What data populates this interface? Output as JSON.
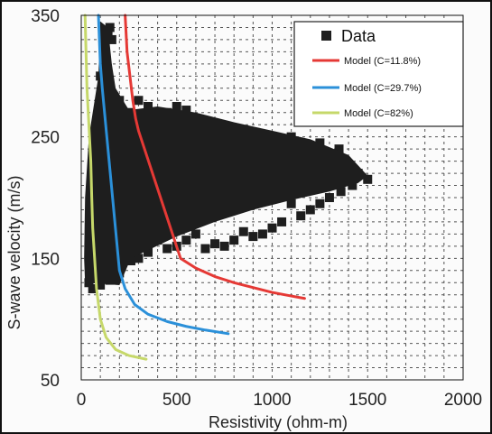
{
  "chart_data": {
    "type": "scatter",
    "title": "",
    "xlabel": "Resistivity (ohm-m)",
    "ylabel": "S-wave velocity (m/s)",
    "xlim": [
      0,
      2000
    ],
    "ylim": [
      50,
      350
    ],
    "xticks": [
      "0",
      "500",
      "1000",
      "1500",
      "2000"
    ],
    "yticks": [
      "50",
      "150",
      "250",
      "350"
    ],
    "grid": true,
    "legend_position": "top-right",
    "colors": {
      "data": "#1e1e1e",
      "model_c11": "#e53935",
      "model_c29": "#2b90d9",
      "model_c82": "#c6d86a"
    },
    "data_series": {
      "name": "Data",
      "marker": "square",
      "points": [
        [
          40,
          130
        ],
        [
          60,
          125
        ],
        [
          80,
          135
        ],
        [
          100,
          128
        ],
        [
          120,
          140
        ],
        [
          150,
          132
        ],
        [
          200,
          138
        ],
        [
          240,
          150
        ],
        [
          180,
          160
        ],
        [
          220,
          170
        ],
        [
          260,
          180
        ],
        [
          300,
          175
        ],
        [
          350,
          190
        ],
        [
          400,
          200
        ],
        [
          450,
          210
        ],
        [
          500,
          205
        ],
        [
          550,
          215
        ],
        [
          600,
          220
        ],
        [
          650,
          225
        ],
        [
          700,
          230
        ],
        [
          750,
          222
        ],
        [
          800,
          235
        ],
        [
          850,
          228
        ],
        [
          900,
          240
        ],
        [
          950,
          232
        ],
        [
          1000,
          245
        ],
        [
          1050,
          236
        ],
        [
          1100,
          250
        ],
        [
          1150,
          238
        ],
        [
          1200,
          230
        ],
        [
          1250,
          245
        ],
        [
          1300,
          228
        ],
        [
          1350,
          240
        ],
        [
          1400,
          226
        ],
        [
          1450,
          220
        ],
        [
          1500,
          215
        ],
        [
          1420,
          210
        ],
        [
          1360,
          205
        ],
        [
          1300,
          200
        ],
        [
          1250,
          195
        ],
        [
          1200,
          190
        ],
        [
          1150,
          185
        ],
        [
          1100,
          195
        ],
        [
          1050,
          180
        ],
        [
          1000,
          175
        ],
        [
          950,
          170
        ],
        [
          900,
          168
        ],
        [
          850,
          172
        ],
        [
          800,
          165
        ],
        [
          750,
          160
        ],
        [
          700,
          162
        ],
        [
          650,
          158
        ],
        [
          600,
          170
        ],
        [
          550,
          165
        ],
        [
          500,
          160
        ],
        [
          450,
          158
        ],
        [
          400,
          165
        ],
        [
          350,
          155
        ],
        [
          300,
          150
        ],
        [
          260,
          148
        ],
        [
          400,
          265
        ],
        [
          450,
          270
        ],
        [
          500,
          275
        ],
        [
          550,
          272
        ],
        [
          600,
          262
        ],
        [
          650,
          258
        ],
        [
          700,
          255
        ],
        [
          750,
          258
        ],
        [
          800,
          245
        ],
        [
          850,
          250
        ],
        [
          100,
          300
        ],
        [
          120,
          320
        ],
        [
          140,
          336
        ],
        [
          150,
          340
        ],
        [
          160,
          330
        ],
        [
          130,
          310
        ],
        [
          110,
          290
        ],
        [
          90,
          270
        ],
        [
          180,
          260
        ],
        [
          200,
          280
        ],
        [
          300,
          280
        ],
        [
          350,
          275
        ],
        [
          250,
          270
        ],
        [
          80,
          200
        ],
        [
          70,
          180
        ],
        [
          60,
          160
        ],
        [
          50,
          145
        ],
        [
          90,
          190
        ],
        [
          110,
          210
        ],
        [
          130,
          230
        ]
      ]
    },
    "series": [
      {
        "name": "Model (C=11.8%)",
        "color": "#e53935",
        "points": [
          [
            230,
            350
          ],
          [
            240,
            320
          ],
          [
            255,
            300
          ],
          [
            270,
            280
          ],
          [
            285,
            265
          ],
          [
            300,
            255
          ],
          [
            520,
            150
          ],
          [
            600,
            142
          ],
          [
            700,
            135
          ],
          [
            800,
            130
          ],
          [
            900,
            126
          ],
          [
            1000,
            122
          ],
          [
            1100,
            119
          ],
          [
            1170,
            117
          ]
        ]
      },
      {
        "name": "Model (C=29.7%)",
        "color": "#2b90d9",
        "points": [
          [
            90,
            350
          ],
          [
            95,
            330
          ],
          [
            100,
            310
          ],
          [
            110,
            290
          ],
          [
            200,
            140
          ],
          [
            230,
            125
          ],
          [
            280,
            112
          ],
          [
            350,
            104
          ],
          [
            450,
            98
          ],
          [
            550,
            94
          ],
          [
            650,
            91
          ],
          [
            770,
            88
          ]
        ]
      },
      {
        "name": "Model (C=82%)",
        "color": "#c6d86a",
        "points": [
          [
            20,
            350
          ],
          [
            25,
            320
          ],
          [
            30,
            290
          ],
          [
            40,
            260
          ],
          [
            50,
            230
          ],
          [
            55,
            200
          ],
          [
            60,
            175
          ],
          [
            70,
            150
          ],
          [
            80,
            125
          ],
          [
            100,
            100
          ],
          [
            130,
            85
          ],
          [
            180,
            75
          ],
          [
            250,
            70
          ],
          [
            340,
            67
          ]
        ]
      }
    ]
  }
}
